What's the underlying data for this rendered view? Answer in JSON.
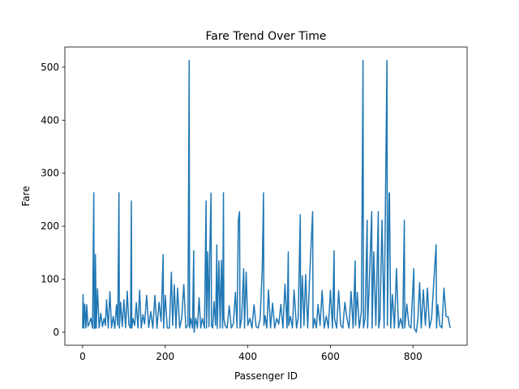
{
  "chart_data": {
    "type": "line",
    "title": "Fare Trend Over Time",
    "xlabel": "Passenger ID",
    "ylabel": "Fare",
    "x": [
      0,
      1,
      3,
      5,
      8,
      10,
      13,
      16,
      20,
      24,
      27,
      28,
      30,
      31,
      33,
      36,
      40,
      44,
      48,
      52,
      55,
      58,
      62,
      66,
      70,
      74,
      78,
      82,
      85,
      88,
      89,
      92,
      96,
      100,
      104,
      108,
      112,
      116,
      118,
      119,
      122,
      126,
      130,
      134,
      138,
      142,
      146,
      150,
      155,
      160,
      165,
      170,
      175,
      180,
      185,
      190,
      195,
      196,
      200,
      205,
      210,
      215,
      218,
      222,
      226,
      230,
      235,
      240,
      245,
      250,
      255,
      258,
      259,
      262,
      266,
      269,
      270,
      274,
      278,
      282,
      286,
      290,
      295,
      299,
      300,
      303,
      306,
      308,
      311,
      312,
      315,
      318,
      322,
      325,
      326,
      330,
      333,
      336,
      339,
      341,
      342,
      345,
      350,
      355,
      360,
      365,
      370,
      374,
      377,
      380,
      381,
      385,
      390,
      392,
      396,
      400,
      405,
      410,
      415,
      420,
      425,
      430,
      435,
      438,
      439,
      442,
      446,
      450,
      455,
      460,
      465,
      470,
      475,
      480,
      485,
      490,
      495,
      498,
      499,
      503,
      508,
      512,
      518,
      522,
      527,
      528,
      532,
      536,
      540,
      545,
      550,
      557,
      558,
      562,
      566,
      570,
      575,
      580,
      585,
      590,
      595,
      600,
      605,
      609,
      610,
      615,
      620,
      625,
      630,
      635,
      640,
      645,
      650,
      655,
      660,
      661,
      665,
      670,
      675,
      679,
      680,
      684,
      689,
      690,
      694,
      700,
      701,
      705,
      710,
      716,
      717,
      720,
      725,
      730,
      737,
      738,
      742,
      743,
      746,
      750,
      755,
      760,
      765,
      770,
      775,
      779,
      780,
      785,
      790,
      795,
      802,
      803,
      808,
      812,
      816,
      820,
      825,
      830,
      835,
      840,
      845,
      850,
      856,
      857,
      860,
      865,
      870,
      875,
      880,
      885,
      890
    ],
    "series": [
      {
        "name": "Fare",
        "color": "#1f77b4",
        "values": [
          7.25,
          71.3,
          7.9,
          53.1,
          8.05,
          51.9,
          11.1,
          16.7,
          26.6,
          8.05,
          263,
          7.2,
          7.9,
          146.5,
          8.0,
          82.2,
          7.9,
          35.5,
          10.5,
          26,
          13,
          61,
          7.8,
          76.7,
          8.1,
          30,
          7.2,
          52,
          13,
          263,
          8.05,
          56.5,
          10.5,
          61.2,
          8.4,
          77.3,
          14.5,
          7.75,
          247.5,
          7.9,
          26,
          13,
          55.9,
          8.05,
          79.2,
          7.9,
          33,
          15.5,
          69.6,
          8.66,
          39,
          7.75,
          69.5,
          7.25,
          56.5,
          20.5,
          146.5,
          7.8,
          69.5,
          8.05,
          7.9,
          113.3,
          13,
          90,
          7.75,
          83.2,
          8.05,
          26.6,
          90,
          7.9,
          13,
          512.3,
          7.9,
          26,
          7.75,
          153.5,
          0,
          26.3,
          7.8,
          65,
          7.9,
          26,
          8.05,
          247.5,
          7.9,
          151.6,
          10.5,
          153.5,
          262.4,
          13,
          7.8,
          57.9,
          13,
          164.9,
          7.25,
          134.5,
          8.05,
          135.6,
          7.9,
          263,
          26,
          13,
          7.75,
          50,
          8.05,
          15.5,
          75.3,
          7.9,
          211.5,
          227.5,
          8.05,
          26,
          120,
          7.75,
          113.3,
          13,
          26.3,
          7.9,
          52,
          10.5,
          7.9,
          26.5,
          120,
          263,
          13,
          31,
          7.9,
          80,
          8.05,
          55,
          7.75,
          26,
          15.2,
          52.5,
          8.05,
          91.1,
          7.9,
          151.6,
          13,
          30,
          7.9,
          79.6,
          8.05,
          26.6,
          221.8,
          7.75,
          106.4,
          13,
          108.9,
          7.9,
          110.9,
          227.5,
          8.05,
          26,
          7.9,
          52.5,
          13,
          78.9,
          7.75,
          30.5,
          8.05,
          79.2,
          7.9,
          153.5,
          26,
          7.75,
          78.3,
          13,
          7.9,
          56.5,
          26.3,
          7.75,
          77,
          8.05,
          134.5,
          13,
          75.3,
          7.9,
          39.6,
          512.3,
          7.9,
          26,
          211.3,
          8.05,
          90,
          227.5,
          7.75,
          151.6,
          13,
          227.5,
          7.9,
          26.5,
          211.5,
          8.05,
          512.3,
          13,
          262.4,
          263,
          7.75,
          71,
          8.05,
          120,
          7.9,
          26,
          7.25,
          211.3,
          8.05,
          53.1,
          13,
          7.9,
          120,
          7.75,
          0,
          26,
          93.5,
          7.9,
          80,
          13,
          83.2,
          8.05,
          26,
          90,
          164.9,
          7.75,
          52,
          13,
          7.9,
          83.2,
          30,
          29.1,
          7.75
        ]
      }
    ],
    "xlim": [
      -43,
      931
    ],
    "ylim": [
      -24.5,
      538
    ],
    "xticks": [
      0,
      200,
      400,
      600,
      800
    ],
    "yticks": [
      0,
      100,
      200,
      300,
      400,
      500
    ]
  }
}
